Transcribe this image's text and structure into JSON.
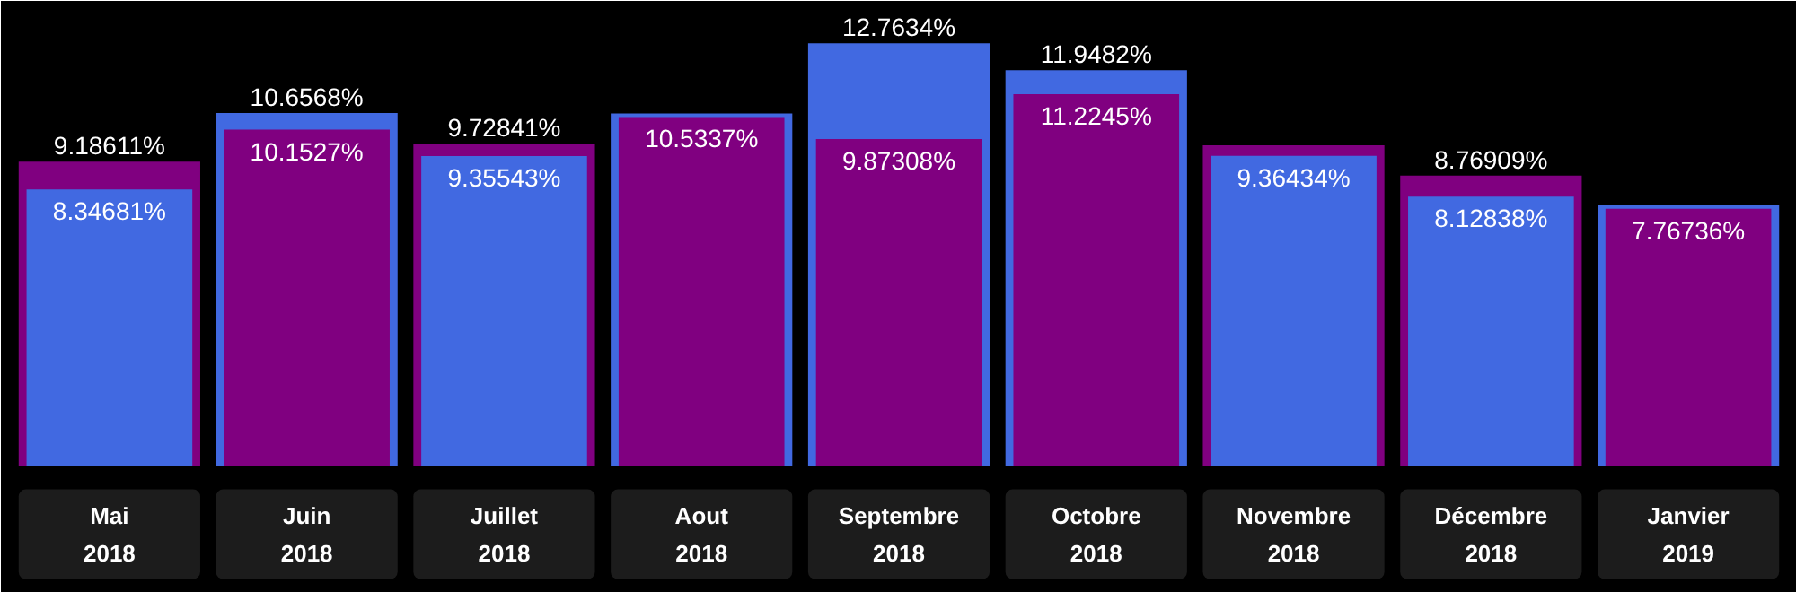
{
  "chart_data": {
    "type": "bar",
    "categories": [
      "Mai 2018",
      "Juin 2018",
      "Juillet 2018",
      "Aout 2018",
      "Septembre 2018",
      "Octobre 2018",
      "Novembre 2018",
      "Décembre 2018",
      "Janvier 2019"
    ],
    "series": [
      {
        "color": "#4169e1",
        "values": [
          8.34681,
          10.6568,
          9.35543,
          10.64,
          12.7634,
          11.9482,
          9.36434,
          8.12838,
          7.87
        ],
        "value_labels": [
          "8.34681%",
          "10.6568%",
          "9.35543%",
          null,
          "12.7634%",
          "11.9482%",
          "9.36434%",
          "8.12838%",
          null
        ]
      },
      {
        "color": "#800080",
        "values": [
          9.18611,
          10.1527,
          9.72841,
          10.5337,
          9.87308,
          11.2245,
          9.68,
          8.76909,
          7.76736
        ],
        "value_labels": [
          "9.18611%",
          "10.1527%",
          "9.72841%",
          "10.5337%",
          "9.87308%",
          "11.2245%",
          null,
          "8.76909%",
          "7.76736%"
        ]
      }
    ],
    "grid": false
  }
}
